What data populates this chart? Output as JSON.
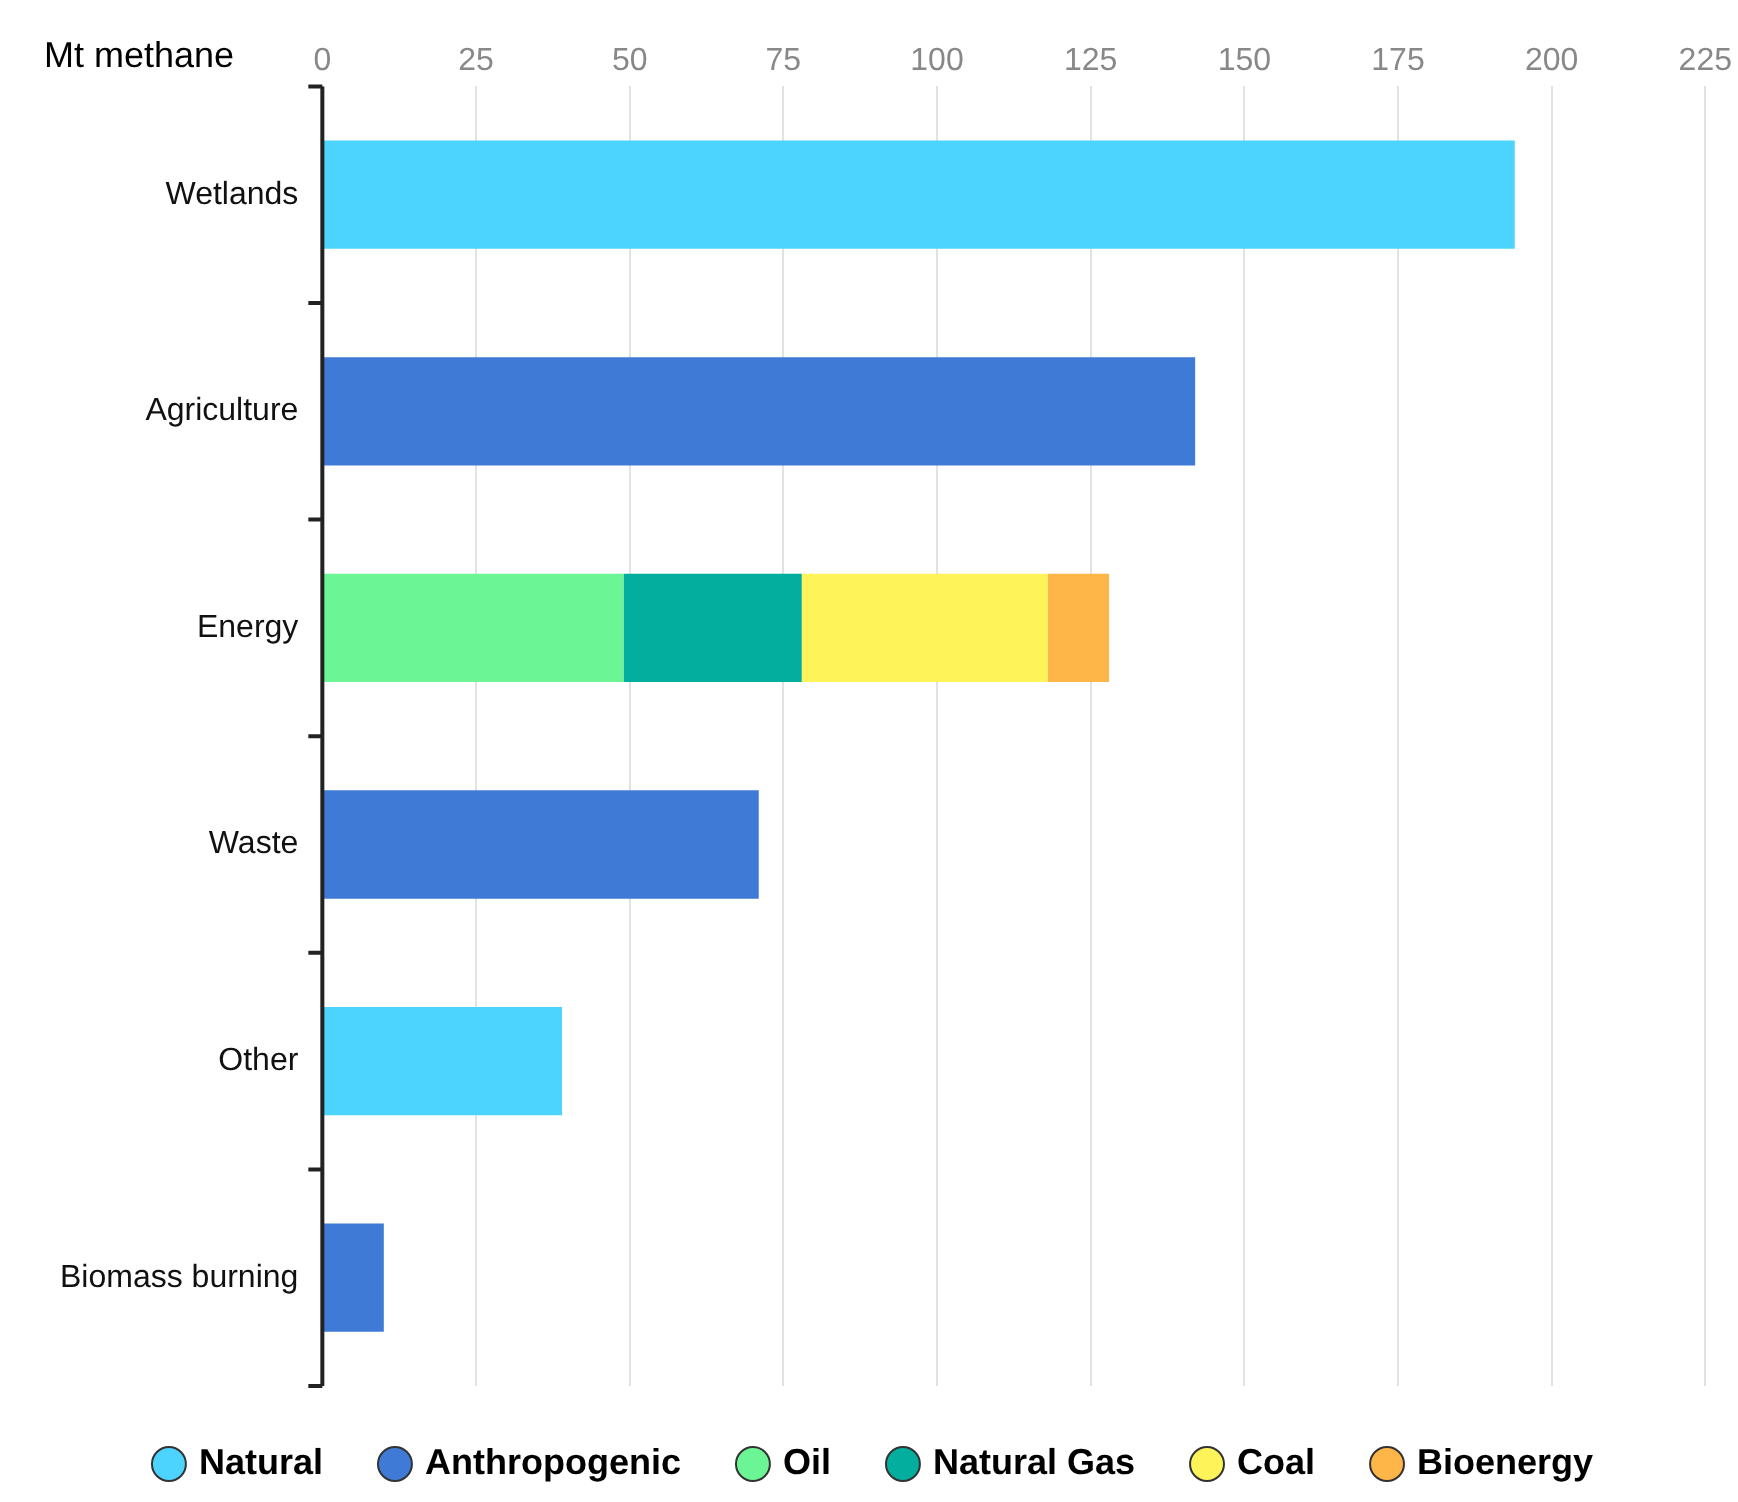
{
  "chart_data": {
    "type": "bar",
    "orientation": "horizontal",
    "stacked": true,
    "xlabel": "Mt methane",
    "categories": [
      "Wetlands",
      "Agriculture",
      "Energy",
      "Waste",
      "Other",
      "Biomass burning"
    ],
    "series": [
      {
        "name": "Natural",
        "color": "#4dd4fe",
        "values": [
          194,
          null,
          null,
          null,
          39,
          null
        ]
      },
      {
        "name": "Anthropogenic",
        "color": "#3f7bd6",
        "values": [
          null,
          142,
          null,
          71,
          null,
          10
        ]
      },
      {
        "name": "Oil",
        "color": "#6bf595",
        "values": [
          null,
          null,
          49,
          null,
          null,
          null
        ]
      },
      {
        "name": "Natural Gas",
        "color": "#03ae9f",
        "values": [
          null,
          null,
          29,
          null,
          null,
          null
        ]
      },
      {
        "name": "Coal",
        "color": "#fff35a",
        "values": [
          null,
          null,
          40,
          null,
          null,
          null
        ]
      },
      {
        "name": "Bioenergy",
        "color": "#ffb648",
        "values": [
          null,
          null,
          10,
          null,
          null,
          null
        ]
      }
    ],
    "xlim": [
      0,
      225
    ],
    "xticks": [
      0,
      25,
      50,
      75,
      100,
      125,
      150,
      175,
      200,
      225
    ],
    "grid": "x",
    "legend": "bottom"
  }
}
